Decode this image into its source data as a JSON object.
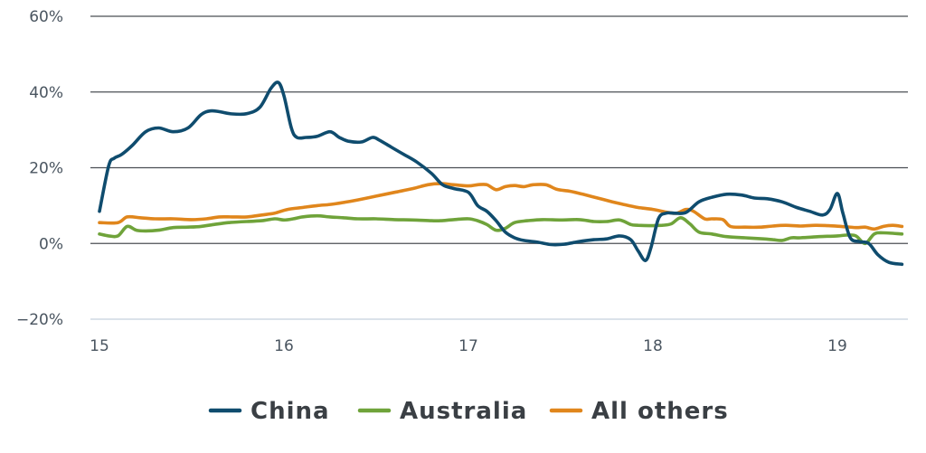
{
  "chart_data": {
    "type": "line",
    "title": "",
    "xlabel": "",
    "ylabel": "",
    "ylim": [
      -20,
      60
    ],
    "xlim": [
      15,
      19.4
    ],
    "y_ticks": [
      60,
      40,
      20,
      0,
      -20
    ],
    "y_tick_labels": [
      "60%",
      "40%",
      "20%",
      "0%",
      "−20%"
    ],
    "x_ticks": [
      15,
      16,
      17,
      18,
      19
    ],
    "x_tick_labels": [
      "15",
      "16",
      "17",
      "18",
      "19"
    ],
    "grid": "horizontal",
    "legend_position": "bottom",
    "series": [
      {
        "name": "China",
        "color": "#0f4c6e",
        "x": [
          15.0,
          15.05,
          15.08,
          15.12,
          15.18,
          15.25,
          15.32,
          15.4,
          15.48,
          15.55,
          15.6,
          15.65,
          15.72,
          15.8,
          15.87,
          15.93,
          15.97,
          16.0,
          16.04,
          16.07,
          16.12,
          16.18,
          16.25,
          16.3,
          16.35,
          16.42,
          16.48,
          16.52,
          16.58,
          16.65,
          16.72,
          16.8,
          16.86,
          16.92,
          17.0,
          17.05,
          17.1,
          17.15,
          17.2,
          17.25,
          17.3,
          17.38,
          17.45,
          17.52,
          17.6,
          17.68,
          17.75,
          17.82,
          17.88,
          17.92,
          17.96,
          17.99,
          18.03,
          18.07,
          18.12,
          18.18,
          18.25,
          18.32,
          18.4,
          18.48,
          18.55,
          18.62,
          18.7,
          18.78,
          18.85,
          18.92,
          18.96,
          19.0,
          19.03,
          19.07,
          19.12,
          19.17,
          19.22,
          19.28,
          19.35
        ],
        "values": [
          8.5,
          20.5,
          22.5,
          23.5,
          26,
          29.5,
          30.5,
          29.5,
          30.5,
          34,
          35,
          34.8,
          34.2,
          34.3,
          36,
          41,
          42.5,
          39,
          30.5,
          28,
          28,
          28.3,
          29.5,
          28,
          27,
          26.8,
          28,
          27.2,
          25.5,
          23.5,
          21.5,
          18.5,
          15.5,
          14.5,
          13.5,
          10,
          8.5,
          6,
          3,
          1.5,
          0.8,
          0.3,
          -0.3,
          -0.2,
          0.5,
          1,
          1.2,
          2,
          1,
          -2,
          -4.5,
          -1,
          6.5,
          8,
          8,
          8.2,
          11,
          12.2,
          13,
          12.8,
          12,
          11.8,
          11,
          9.5,
          8.5,
          7.5,
          9,
          13.2,
          8,
          1.5,
          0.5,
          0,
          -3,
          -5,
          -5.5
        ]
      },
      {
        "name": "Australia",
        "color": "#6fa33a",
        "x": [
          15.0,
          15.05,
          15.1,
          15.15,
          15.2,
          15.25,
          15.32,
          15.4,
          15.48,
          15.55,
          15.62,
          15.7,
          15.8,
          15.88,
          15.95,
          16.0,
          16.05,
          16.1,
          16.18,
          16.25,
          16.32,
          16.4,
          16.5,
          16.6,
          16.7,
          16.8,
          16.85,
          16.92,
          17.0,
          17.05,
          17.1,
          17.15,
          17.2,
          17.25,
          17.32,
          17.4,
          17.5,
          17.6,
          17.68,
          17.75,
          17.82,
          17.88,
          17.92,
          17.98,
          18.05,
          18.1,
          18.15,
          18.2,
          18.25,
          18.32,
          18.4,
          18.5,
          18.6,
          18.65,
          18.7,
          18.75,
          18.8,
          18.9,
          19.0,
          19.05,
          19.1,
          19.15,
          19.2,
          19.25,
          19.35
        ],
        "values": [
          2.5,
          2,
          2,
          4.5,
          3.5,
          3.3,
          3.5,
          4.2,
          4.3,
          4.5,
          5,
          5.5,
          5.8,
          6,
          6.5,
          6.2,
          6.5,
          7,
          7.3,
          7,
          6.8,
          6.5,
          6.5,
          6.3,
          6.2,
          6,
          6,
          6.3,
          6.5,
          6,
          5,
          3.5,
          4,
          5.5,
          6,
          6.3,
          6.2,
          6.3,
          5.8,
          5.8,
          6.2,
          5,
          4.8,
          4.7,
          4.8,
          5.2,
          6.8,
          5.2,
          3,
          2.5,
          1.8,
          1.5,
          1.2,
          1,
          0.8,
          1.5,
          1.5,
          1.8,
          2,
          2.2,
          2,
          0,
          2.5,
          2.8,
          2.5
        ]
      },
      {
        "name": "All others",
        "color": "#e0861c",
        "x": [
          15.0,
          15.1,
          15.15,
          15.22,
          15.3,
          15.4,
          15.5,
          15.58,
          15.65,
          15.72,
          15.8,
          15.88,
          15.95,
          16.02,
          16.1,
          16.18,
          16.25,
          16.32,
          16.4,
          16.5,
          16.6,
          16.7,
          16.78,
          16.85,
          16.92,
          17.0,
          17.05,
          17.1,
          17.15,
          17.2,
          17.25,
          17.3,
          17.35,
          17.42,
          17.48,
          17.55,
          17.62,
          17.7,
          17.78,
          17.85,
          17.92,
          18.0,
          18.08,
          18.13,
          18.18,
          18.22,
          18.28,
          18.32,
          18.38,
          18.42,
          18.5,
          18.58,
          18.65,
          18.72,
          18.8,
          18.88,
          18.95,
          19.02,
          19.1,
          19.15,
          19.2,
          19.25,
          19.3,
          19.35
        ],
        "values": [
          5.5,
          5.5,
          7,
          6.8,
          6.5,
          6.5,
          6.3,
          6.5,
          7,
          7,
          7,
          7.5,
          8,
          9,
          9.5,
          10,
          10.3,
          10.8,
          11.5,
          12.5,
          13.5,
          14.5,
          15.5,
          15.8,
          15.5,
          15.2,
          15.5,
          15.5,
          14.2,
          15,
          15.3,
          15,
          15.5,
          15.5,
          14.3,
          13.8,
          13,
          12,
          11,
          10.2,
          9.5,
          9,
          8.2,
          8,
          9,
          8.5,
          6.5,
          6.5,
          6.3,
          4.5,
          4.3,
          4.3,
          4.6,
          4.8,
          4.6,
          4.8,
          4.7,
          4.5,
          4.2,
          4.3,
          3.8,
          4.5,
          4.8,
          4.5
        ]
      }
    ]
  }
}
